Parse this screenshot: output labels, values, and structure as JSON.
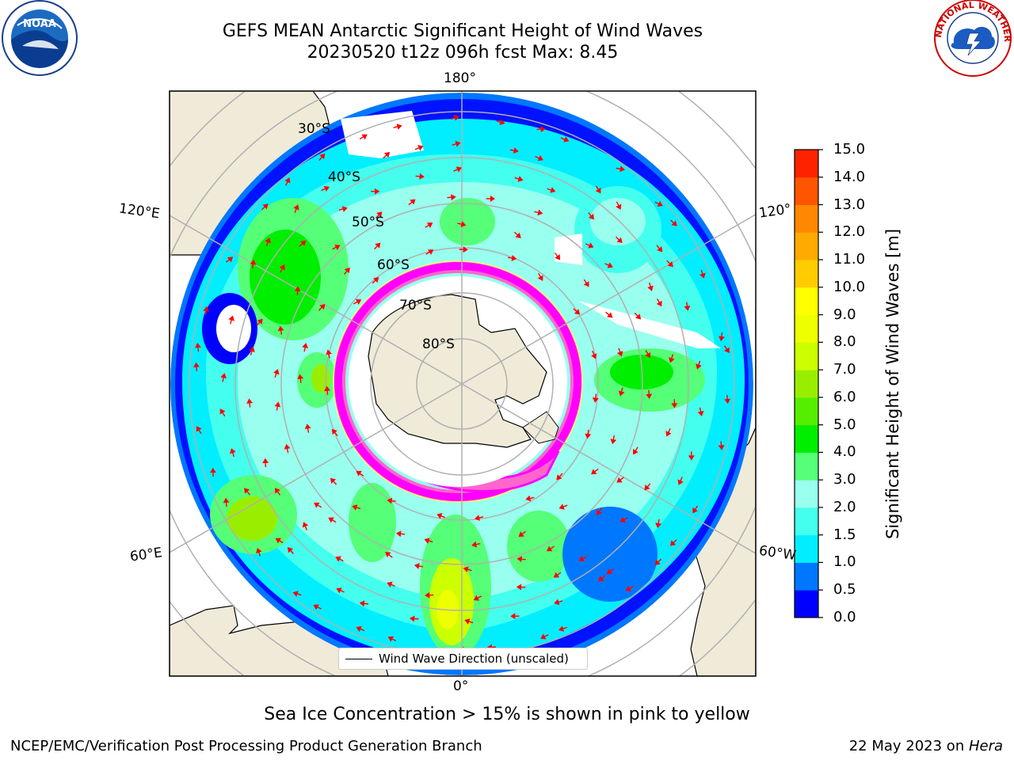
{
  "title": {
    "line1": "GEFS MEAN Antarctic Significant Height of Wind Waves",
    "line2": "20230520 t12z 096h fcst   Max: 8.45"
  },
  "map": {
    "lon_labels": [
      "180°",
      "0°",
      "120°E",
      "120°",
      "60°E",
      "60°W"
    ],
    "lat_labels": [
      "30°S",
      "40°S",
      "50°S",
      "60°S",
      "70°S",
      "80°S"
    ],
    "legend_text": "Wind Wave Direction (unscaled)",
    "arrow_color": "#ff0000",
    "land_color": "#efebd8",
    "ice_colors": [
      "#ff66cc",
      "#ff00ff",
      "#ffff66"
    ]
  },
  "colorbar": {
    "label": "Significant Height of Wind Waves [m]",
    "ticks": [
      "15.0",
      "14.0",
      "13.0",
      "12.0",
      "11.0",
      "10.0",
      "9.0",
      "8.0",
      "7.0",
      "6.0",
      "5.0",
      "4.0",
      "3.0",
      "2.0",
      "1.5",
      "1.0",
      "0.5",
      "0.0"
    ],
    "colors": [
      "#0000ff",
      "#0077ff",
      "#00eeff",
      "#44ffee",
      "#99ffee",
      "#55ff77",
      "#00ee00",
      "#55ee00",
      "#99ee00",
      "#ccff00",
      "#eeff00",
      "#ffff00",
      "#ffcc00",
      "#ffaa00",
      "#ff8800",
      "#ff5500",
      "#ff2200"
    ]
  },
  "logos": {
    "left": "NOAA",
    "right_text": "NATIONAL WEATHER SERVICE"
  },
  "note": "Sea Ice Concentration > 15% is shown in pink to yellow",
  "footer": {
    "left": "NCEP/EMC/Verification Post Processing Product Generation Branch",
    "right_date": "22 May 2023 on ",
    "right_system": "Hera"
  }
}
